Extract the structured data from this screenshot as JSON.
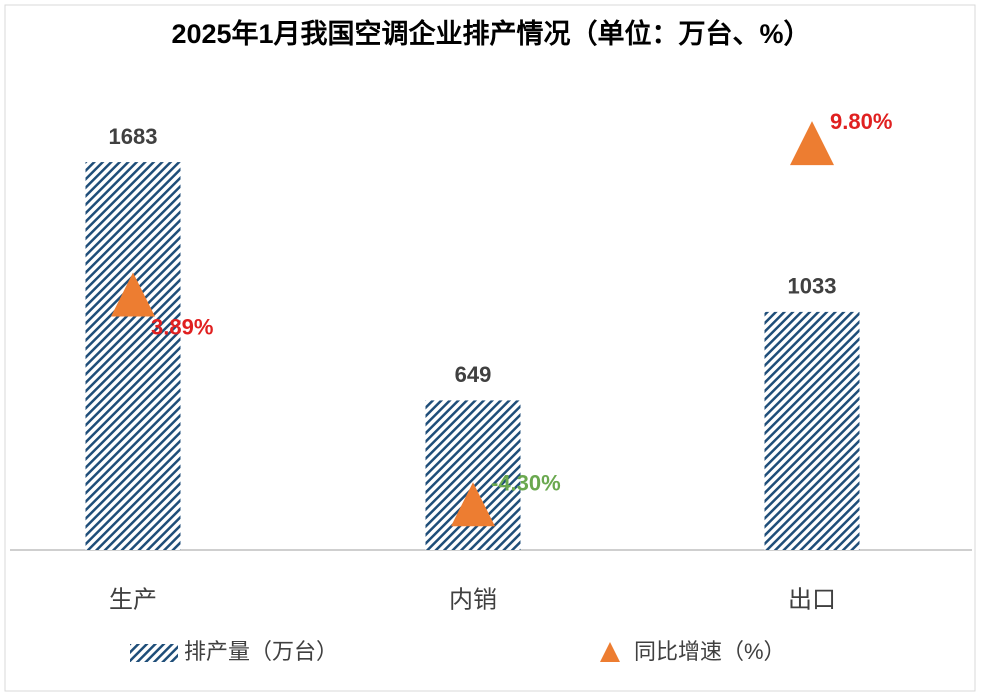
{
  "chart_data": {
    "type": "bar-triangle",
    "title": "2025年1月我国空调企业排产情况（单位：万台、%）",
    "categories": [
      "生产",
      "内销",
      "出口"
    ],
    "series": [
      {
        "name": "排产量（万台）",
        "type": "bar",
        "color": "#1f4e79",
        "values": [
          1683,
          649,
          1033
        ]
      },
      {
        "name": "同比增速（%）",
        "type": "triangle",
        "axis": "y2",
        "color": "#ed7d31",
        "values": [
          3.89,
          -4.3,
          9.8
        ],
        "value_labels": [
          "3.89%",
          "-4.30%",
          "9.80%"
        ],
        "label_colors": [
          "#e02020",
          "#6aa84f",
          "#e02020"
        ]
      }
    ],
    "ylim": [
      0,
      2000
    ],
    "y2lim": [
      -6,
      12
    ],
    "legend": "bottom"
  }
}
